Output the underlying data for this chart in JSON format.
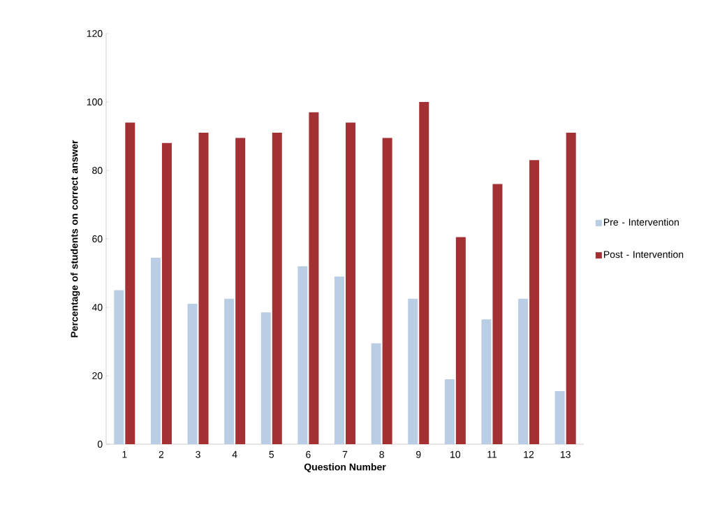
{
  "chart_data": {
    "type": "bar",
    "xlabel": "Question Number",
    "ylabel": "Percentage of students on correct answer",
    "categories": [
      "1",
      "2",
      "3",
      "4",
      "5",
      "6",
      "7",
      "8",
      "9",
      "10",
      "11",
      "12",
      "13"
    ],
    "series": [
      {
        "name": "Pre - Intervention",
        "color": "#b9cde5",
        "values": [
          45,
          54.5,
          41,
          42.5,
          38.5,
          52,
          49,
          29.5,
          42.5,
          19,
          36.5,
          42.5,
          15.5
        ]
      },
      {
        "name": "Post - Intervention",
        "color": "#a33033",
        "values": [
          94,
          88,
          91,
          89.5,
          91,
          97,
          94,
          89.5,
          100,
          60.5,
          76,
          83,
          91
        ]
      }
    ],
    "ylim": [
      0,
      120
    ],
    "yticks": [
      0,
      20,
      40,
      60,
      80,
      100,
      120
    ],
    "grid": false,
    "legend": "right"
  }
}
